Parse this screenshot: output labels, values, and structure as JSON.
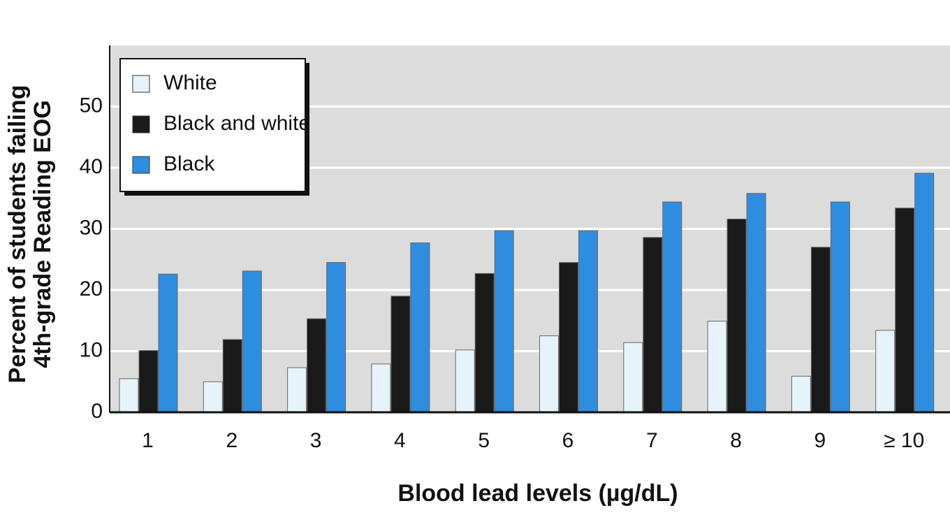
{
  "chart_data": {
    "type": "bar",
    "ylabel": [
      "Percent of students failing",
      "4th-grade Reading EOG"
    ],
    "xlabel": "Blood lead levels (µg/dL)",
    "categories": [
      "1",
      "2",
      "3",
      "4",
      "5",
      "6",
      "7",
      "8",
      "9",
      "≥ 10"
    ],
    "series": [
      {
        "name": "White",
        "color": "#e6f3fb",
        "values": [
          5.5,
          5.0,
          7.3,
          7.9,
          10.2,
          12.5,
          11.4,
          14.9,
          5.9,
          13.4
        ]
      },
      {
        "name": "Black and white",
        "color": "#1a1a1a",
        "values": [
          10.1,
          11.9,
          15.3,
          19.0,
          22.7,
          24.5,
          28.6,
          31.6,
          27.0,
          33.4
        ]
      },
      {
        "name": "Black",
        "color": "#2f8de0",
        "values": [
          22.6,
          23.1,
          24.5,
          27.7,
          29.7,
          29.7,
          34.4,
          35.8,
          34.4,
          39.1
        ]
      }
    ],
    "ylim": [
      0,
      60
    ],
    "yticks": [
      0,
      10,
      20,
      30,
      40,
      50
    ],
    "grid": true,
    "legend": "upper-left"
  }
}
